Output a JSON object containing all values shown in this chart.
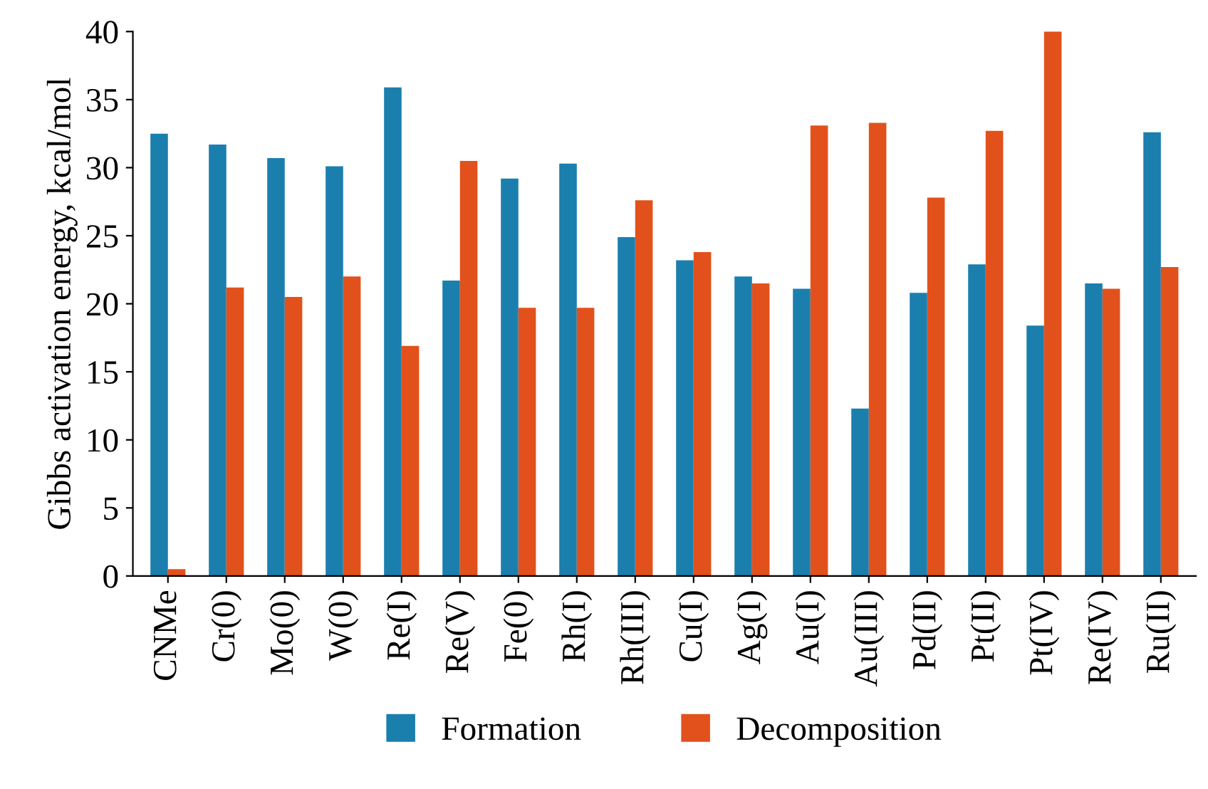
{
  "chart_data": {
    "type": "bar",
    "ylabel": "Gibbs activation energy, kcal/mol",
    "categories": [
      "CNMe",
      "Cr(0)",
      "Mo(0)",
      "W(0)",
      "Re(I)",
      "Re(V)",
      "Fe(0)",
      "Rh(I)",
      "Rh(III)",
      "Cu(I)",
      "Ag(I)",
      "Au(I)",
      "Au(III)",
      "Pd(II)",
      "Pt(II)",
      "Pt(IV)",
      "Re(IV)",
      "Ru(II)"
    ],
    "series": [
      {
        "name": "Formation",
        "color": "#1b7fae",
        "values": [
          32.5,
          31.7,
          30.7,
          30.1,
          35.9,
          21.7,
          29.2,
          30.3,
          24.9,
          23.2,
          22.0,
          21.1,
          12.3,
          20.8,
          22.9,
          18.4,
          21.5,
          32.6
        ]
      },
      {
        "name": "Decomposition",
        "color": "#e2511b",
        "values": [
          0.5,
          21.2,
          20.5,
          22.0,
          16.9,
          30.5,
          19.7,
          19.7,
          27.6,
          23.8,
          21.5,
          33.1,
          33.3,
          27.8,
          32.7,
          40.0,
          21.1,
          22.7
        ]
      }
    ],
    "ylim": [
      0,
      40
    ],
    "yticks": [
      0,
      5,
      10,
      15,
      20,
      25,
      30,
      35,
      40
    ],
    "grid": false,
    "legend": "bottom"
  }
}
